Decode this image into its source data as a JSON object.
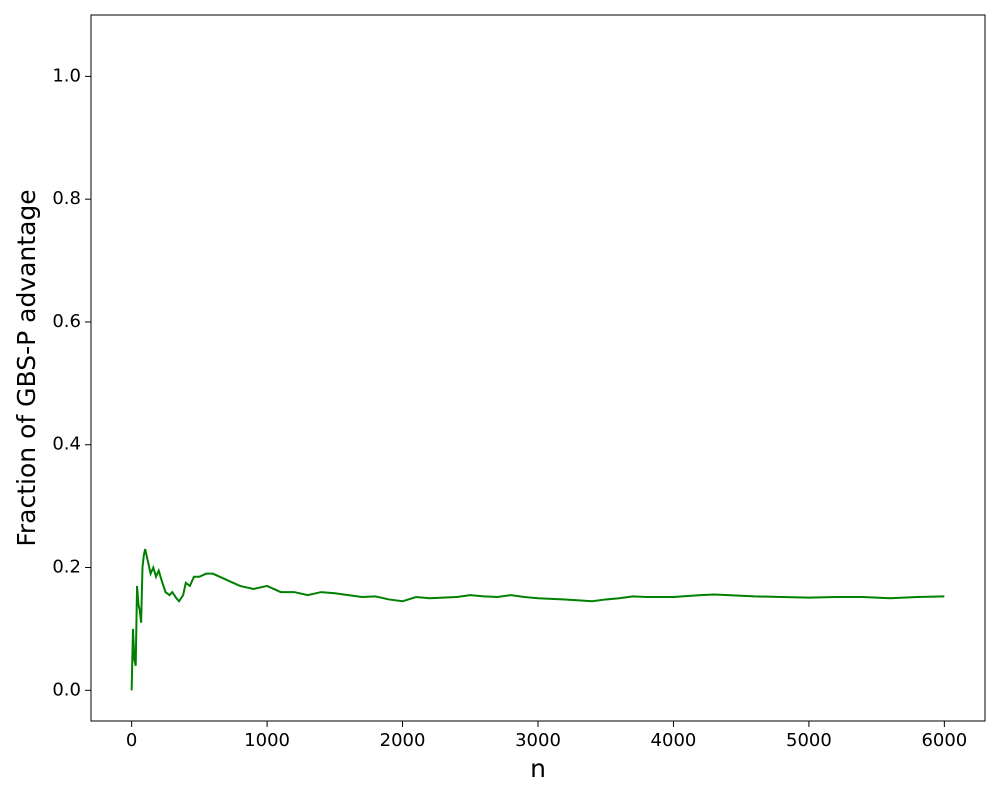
{
  "chart_data": {
    "type": "line",
    "xlabel": "n",
    "ylabel": "Fraction of GBS-P advantage",
    "x": [
      0,
      10,
      20,
      30,
      40,
      50,
      60,
      70,
      80,
      90,
      100,
      120,
      140,
      160,
      180,
      200,
      220,
      250,
      280,
      300,
      330,
      350,
      380,
      400,
      430,
      460,
      500,
      550,
      600,
      700,
      800,
      900,
      1000,
      1100,
      1200,
      1300,
      1400,
      1500,
      1600,
      1700,
      1800,
      1900,
      2000,
      2100,
      2200,
      2400,
      2500,
      2600,
      2700,
      2800,
      2900,
      3000,
      3200,
      3400,
      3500,
      3600,
      3700,
      3800,
      4000,
      4200,
      4300,
      4400,
      4600,
      4800,
      5000,
      5200,
      5400,
      5600,
      5800,
      6000
    ],
    "series": [
      {
        "color": "#008000",
        "values": [
          0,
          0.1,
          0.05,
          0.04,
          0.17,
          0.14,
          0.13,
          0.11,
          0.2,
          0.22,
          0.23,
          0.21,
          0.19,
          0.2,
          0.185,
          0.195,
          0.18,
          0.16,
          0.155,
          0.16,
          0.15,
          0.145,
          0.155,
          0.175,
          0.17,
          0.185,
          0.185,
          0.19,
          0.19,
          0.18,
          0.17,
          0.165,
          0.17,
          0.16,
          0.16,
          0.155,
          0.16,
          0.158,
          0.155,
          0.152,
          0.153,
          0.148,
          0.145,
          0.152,
          0.15,
          0.152,
          0.155,
          0.153,
          0.152,
          0.155,
          0.152,
          0.15,
          0.148,
          0.145,
          0.148,
          0.15,
          0.153,
          0.152,
          0.152,
          0.155,
          0.156,
          0.155,
          0.153,
          0.152,
          0.151,
          0.152,
          0.152,
          0.15,
          0.152,
          0.153
        ]
      }
    ],
    "xlim": [
      -300,
      6300
    ],
    "ylim": [
      -0.05,
      1.1
    ],
    "xticks": [
      0,
      1000,
      2000,
      3000,
      4000,
      5000,
      6000
    ],
    "yticks": [
      {
        "value": 0,
        "label": "0.0"
      },
      0.2,
      0.4,
      0.6,
      0.8,
      {
        "value": 1,
        "label": "1.0"
      }
    ]
  }
}
